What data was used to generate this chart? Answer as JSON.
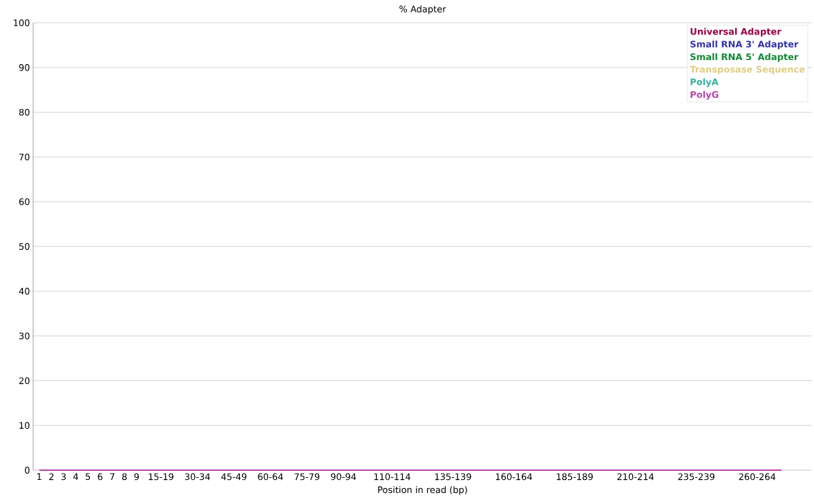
{
  "chart_data": {
    "type": "line",
    "title": "% Adapter",
    "xlabel": "Position in read (bp)",
    "categories": [
      "1",
      "2",
      "3",
      "4",
      "5",
      "6",
      "7",
      "8",
      "9",
      null,
      "15-19",
      null,
      null,
      "30-34",
      null,
      null,
      "45-49",
      null,
      null,
      "60-64",
      null,
      null,
      "75-79",
      null,
      null,
      "90-94",
      null,
      null,
      null,
      "110-114",
      null,
      null,
      null,
      null,
      "135-139",
      null,
      null,
      null,
      null,
      "160-164",
      null,
      null,
      null,
      null,
      "185-189",
      null,
      null,
      null,
      null,
      "210-214",
      null,
      null,
      null,
      null,
      "235-239",
      null,
      null,
      null,
      null,
      "260-264",
      null,
      null
    ],
    "series": [
      {
        "name": "Universal Adapter",
        "color": "#990044",
        "values": [
          null,
          null,
          null,
          null,
          null,
          null,
          null,
          null,
          null,
          null,
          null,
          null,
          null,
          null,
          null,
          null,
          null,
          null,
          null,
          null,
          null,
          null,
          null,
          null,
          null,
          null,
          null,
          null,
          null,
          null,
          null,
          null,
          null,
          null,
          null,
          null,
          null,
          null,
          null,
          null,
          null,
          null,
          null,
          null,
          null,
          null,
          null,
          null,
          null,
          null,
          null,
          null,
          null,
          null,
          null,
          null,
          null,
          null,
          null,
          null,
          null,
          null
        ]
      },
      {
        "name": "Small RNA 3' Adapter",
        "color": "#3333aa",
        "values": [
          null,
          null,
          null,
          null,
          null,
          null,
          null,
          null,
          null,
          null,
          null,
          null,
          null,
          null,
          null,
          null,
          null,
          null,
          null,
          null,
          null,
          null,
          null,
          null,
          null,
          null,
          null,
          null,
          null,
          null,
          null,
          null,
          null,
          null,
          null,
          null,
          null,
          null,
          null,
          null,
          null,
          null,
          null,
          null,
          null,
          null,
          null,
          null,
          null,
          null,
          null,
          null,
          null,
          null,
          null,
          null,
          null,
          null,
          null,
          null,
          null,
          null
        ]
      },
      {
        "name": "Small RNA 5' Adapter",
        "color": "#118833",
        "values": [
          null,
          null,
          null,
          null,
          null,
          null,
          null,
          null,
          null,
          null,
          null,
          null,
          null,
          null,
          null,
          null,
          null,
          null,
          null,
          null,
          null,
          null,
          null,
          null,
          null,
          null,
          null,
          null,
          null,
          null,
          null,
          null,
          null,
          null,
          null,
          null,
          null,
          null,
          null,
          null,
          null,
          null,
          null,
          null,
          null,
          null,
          null,
          null,
          null,
          null,
          null,
          null,
          null,
          null,
          null,
          null,
          null,
          null,
          null,
          null,
          null,
          null
        ]
      },
      {
        "name": "Transposase Sequence",
        "color": "#e0cc80",
        "values": [
          null,
          null,
          null,
          null,
          null,
          null,
          null,
          null,
          null,
          null,
          null,
          null,
          null,
          null,
          null,
          null,
          null,
          null,
          null,
          null,
          null,
          null,
          null,
          null,
          null,
          null,
          null,
          null,
          null,
          null,
          null,
          null,
          null,
          null,
          null,
          null,
          null,
          null,
          null,
          null,
          null,
          null,
          null,
          null,
          null,
          null,
          null,
          null,
          null,
          null,
          null,
          null,
          null,
          null,
          null,
          null,
          null,
          null,
          null,
          null,
          null,
          null
        ]
      },
      {
        "name": "PolyA",
        "color": "#33b0a0",
        "values": [
          null,
          null,
          null,
          null,
          null,
          null,
          null,
          null,
          null,
          null,
          null,
          null,
          null,
          null,
          null,
          null,
          null,
          null,
          null,
          null,
          null,
          null,
          null,
          null,
          null,
          null,
          null,
          null,
          null,
          null,
          null,
          null,
          null,
          null,
          null,
          null,
          null,
          null,
          null,
          null,
          null,
          null,
          null,
          null,
          null,
          null,
          null,
          null,
          null,
          null,
          null,
          null,
          null,
          null,
          null,
          null,
          null,
          null,
          null,
          null,
          null,
          null
        ]
      },
      {
        "name": "PolyG",
        "color": "#bb44aa",
        "values": [
          0,
          0,
          0,
          0,
          0,
          0,
          0,
          0,
          0,
          0,
          0,
          0,
          0,
          0,
          0,
          0,
          0,
          0,
          0,
          0,
          0,
          0,
          0,
          0,
          0,
          0,
          0,
          0,
          0,
          0,
          0,
          0,
          0,
          0,
          0,
          0,
          0,
          0,
          0,
          0,
          0,
          0,
          0,
          0,
          0,
          0,
          0,
          0,
          0,
          0,
          0,
          0,
          0,
          0,
          0,
          0,
          0,
          0,
          0,
          0,
          0,
          0
        ]
      }
    ],
    "ylim": [
      0,
      100
    ],
    "yticks": [
      0,
      10,
      20,
      30,
      40,
      50,
      60,
      70,
      80,
      90,
      100
    ],
    "grid": "y",
    "legend": "top right",
    "marker": "none",
    "line_style": "solid"
  }
}
